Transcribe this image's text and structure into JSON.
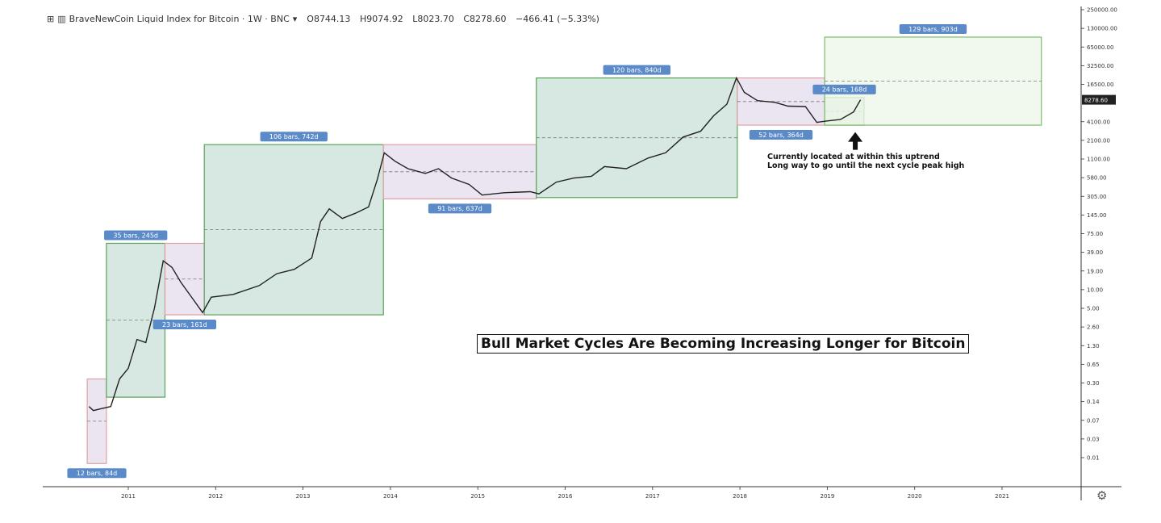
{
  "header": {
    "expand_icon": "expand-icon",
    "symbol_icon": "bar-chart-icon",
    "title": "BraveNewCoin Liquid Index for Bitcoin · 1W · BNC",
    "dropdown_icon": "chevron-down-icon",
    "open": "O8744.13",
    "high": "H9074.92",
    "low": "L8023.70",
    "close": "C8278.60",
    "change": "−466.41 (−5.33%)"
  },
  "last_price_label": "8278.60",
  "settings_icon": "gear-icon",
  "chart_data": {
    "type": "line",
    "title": "Bull Market Cycles Are Becoming Increasing Longer for Bitcoin",
    "yscale": "log",
    "y_ticks": [
      "250000.00",
      "130000.00",
      "65000.00",
      "32500.00",
      "16500.00",
      "8278.60",
      "4100.00",
      "2100.00",
      "1100.00",
      "580.00",
      "305.00",
      "145.00",
      "75.00",
      "39.00",
      "19.00",
      "10.00",
      "5.00",
      "2.60",
      "1.30",
      "0.65",
      "0.30",
      "0.14",
      "0.07",
      "0.03",
      "0.01"
    ],
    "x_ticks": [
      "2011",
      "2012",
      "2013",
      "2014",
      "2015",
      "2016",
      "2017",
      "2018",
      "2019",
      "2020",
      "2021"
    ],
    "price_series": [
      {
        "t": 2010.55,
        "v": 0.07
      },
      {
        "t": 2010.6,
        "v": 0.06
      },
      {
        "t": 2010.7,
        "v": 0.065
      },
      {
        "t": 2010.8,
        "v": 0.07
      },
      {
        "t": 2010.9,
        "v": 0.2
      },
      {
        "t": 2011.0,
        "v": 0.3
      },
      {
        "t": 2011.1,
        "v": 0.9
      },
      {
        "t": 2011.2,
        "v": 0.8
      },
      {
        "t": 2011.3,
        "v": 3.0
      },
      {
        "t": 2011.4,
        "v": 18
      },
      {
        "t": 2011.5,
        "v": 14
      },
      {
        "t": 2011.6,
        "v": 8
      },
      {
        "t": 2011.75,
        "v": 4
      },
      {
        "t": 2011.85,
        "v": 2.5
      },
      {
        "t": 2011.95,
        "v": 4.5
      },
      {
        "t": 2012.2,
        "v": 5
      },
      {
        "t": 2012.5,
        "v": 7
      },
      {
        "t": 2012.7,
        "v": 11
      },
      {
        "t": 2012.9,
        "v": 13
      },
      {
        "t": 2013.1,
        "v": 20
      },
      {
        "t": 2013.2,
        "v": 80
      },
      {
        "t": 2013.3,
        "v": 130
      },
      {
        "t": 2013.45,
        "v": 90
      },
      {
        "t": 2013.6,
        "v": 110
      },
      {
        "t": 2013.75,
        "v": 140
      },
      {
        "t": 2013.85,
        "v": 400
      },
      {
        "t": 2013.93,
        "v": 1100
      },
      {
        "t": 2014.05,
        "v": 800
      },
      {
        "t": 2014.2,
        "v": 600
      },
      {
        "t": 2014.4,
        "v": 500
      },
      {
        "t": 2014.55,
        "v": 600
      },
      {
        "t": 2014.7,
        "v": 420
      },
      {
        "t": 2014.9,
        "v": 330
      },
      {
        "t": 2015.05,
        "v": 220
      },
      {
        "t": 2015.3,
        "v": 240
      },
      {
        "t": 2015.6,
        "v": 250
      },
      {
        "t": 2015.7,
        "v": 230
      },
      {
        "t": 2015.9,
        "v": 360
      },
      {
        "t": 2016.1,
        "v": 420
      },
      {
        "t": 2016.3,
        "v": 450
      },
      {
        "t": 2016.45,
        "v": 650
      },
      {
        "t": 2016.7,
        "v": 600
      },
      {
        "t": 2016.95,
        "v": 900
      },
      {
        "t": 2017.15,
        "v": 1100
      },
      {
        "t": 2017.35,
        "v": 2000
      },
      {
        "t": 2017.55,
        "v": 2500
      },
      {
        "t": 2017.7,
        "v": 4500
      },
      {
        "t": 2017.85,
        "v": 7000
      },
      {
        "t": 2017.96,
        "v": 19000
      },
      {
        "t": 2018.05,
        "v": 11000
      },
      {
        "t": 2018.2,
        "v": 8000
      },
      {
        "t": 2018.4,
        "v": 7500
      },
      {
        "t": 2018.55,
        "v": 6500
      },
      {
        "t": 2018.75,
        "v": 6400
      },
      {
        "t": 2018.88,
        "v": 3500
      },
      {
        "t": 2019.0,
        "v": 3700
      },
      {
        "t": 2019.15,
        "v": 3900
      },
      {
        "t": 2019.3,
        "v": 5200
      },
      {
        "t": 2019.38,
        "v": 8278.6
      }
    ],
    "cycles": [
      {
        "kind": "bear",
        "t0": 2010.53,
        "t1": 2010.75,
        "top": 0.2,
        "bottom": 0.008,
        "label": "12 bars, 84d"
      },
      {
        "kind": "bull",
        "t0": 2010.75,
        "t1": 2011.42,
        "top": 35,
        "bottom": 0.1,
        "label": "35 bars, 245d"
      },
      {
        "kind": "bear",
        "t0": 2011.42,
        "t1": 2011.87,
        "top": 35,
        "bottom": 2.3,
        "label": "23 bars, 161d"
      },
      {
        "kind": "bull",
        "t0": 2011.87,
        "t1": 2013.92,
        "top": 1500,
        "bottom": 2.3,
        "label": "106 bars, 742d"
      },
      {
        "kind": "bear",
        "t0": 2013.92,
        "t1": 2015.67,
        "top": 1500,
        "bottom": 190,
        "label": "91 bars, 637d"
      },
      {
        "kind": "bull",
        "t0": 2015.67,
        "t1": 2017.97,
        "top": 19000,
        "bottom": 200,
        "label": "120 bars, 840d"
      },
      {
        "kind": "bear",
        "t0": 2017.97,
        "t1": 2018.97,
        "top": 19000,
        "bottom": 3150,
        "label": "52 bars, 364d"
      },
      {
        "kind": "bull",
        "t0": 2018.97,
        "t1": 2019.42,
        "top": 9000,
        "bottom": 3150,
        "label": "24 bars, 168d"
      },
      {
        "kind": "projection",
        "t0": 2018.97,
        "t1": 2021.45,
        "top": 90000,
        "bottom": 3150,
        "label": "129 bars, 903d"
      }
    ],
    "annotation": {
      "line1": "Currently located at within this uptrend",
      "line2": "Long way to go until the next cycle peak high"
    }
  }
}
